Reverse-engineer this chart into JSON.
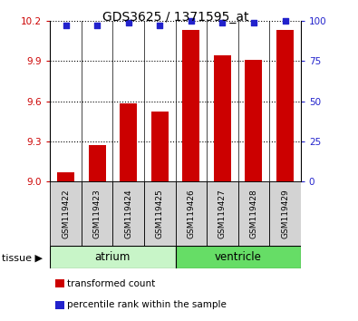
{
  "title": "GDS3625 / 1371595_at",
  "samples": [
    "GSM119422",
    "GSM119423",
    "GSM119424",
    "GSM119425",
    "GSM119426",
    "GSM119427",
    "GSM119428",
    "GSM119429"
  ],
  "transformed_count": [
    9.07,
    9.27,
    9.58,
    9.52,
    10.13,
    9.94,
    9.91,
    10.13
  ],
  "percentile_rank": [
    97,
    97,
    99,
    97,
    100,
    99,
    99,
    100
  ],
  "groups": [
    {
      "label": "atrium",
      "indices": [
        0,
        1,
        2,
        3
      ],
      "color": "#c8f5c8"
    },
    {
      "label": "ventricle",
      "indices": [
        4,
        5,
        6,
        7
      ],
      "color": "#66dd66"
    }
  ],
  "ylim_left": [
    9.0,
    10.2
  ],
  "yticks_left": [
    9.0,
    9.3,
    9.6,
    9.9,
    10.2
  ],
  "ylim_right": [
    0,
    100
  ],
  "yticks_right": [
    0,
    25,
    50,
    75,
    100
  ],
  "bar_color": "#cc0000",
  "dot_color": "#2222cc",
  "bar_width": 0.55,
  "title_fontsize": 10,
  "tick_fontsize": 7.5,
  "sample_fontsize": 6.5,
  "group_label_fontsize": 8.5,
  "legend_fontsize": 7.5,
  "tissue_fontsize": 8,
  "tissue_label": "tissue",
  "legend_entries": [
    "transformed count",
    "percentile rank within the sample"
  ],
  "legend_colors": [
    "#cc0000",
    "#2222cc"
  ],
  "left_tick_color": "#cc0000",
  "right_tick_color": "#2222cc",
  "grid_linestyle": ":",
  "grid_linewidth": 0.8
}
